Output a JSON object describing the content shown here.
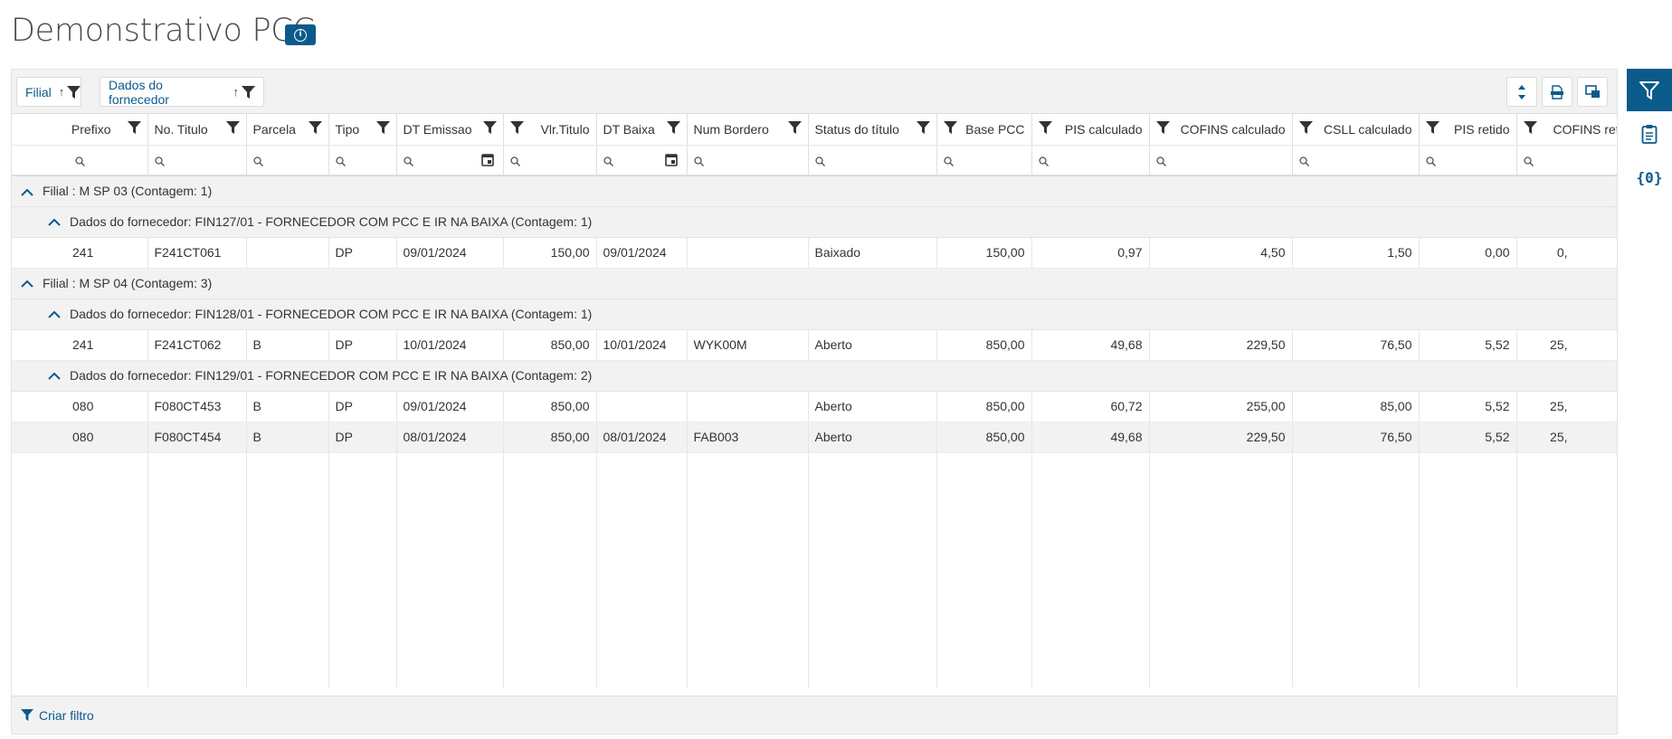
{
  "page": {
    "title": "Demonstrativo PCC"
  },
  "grouping": {
    "chips": [
      {
        "label": "Filial"
      },
      {
        "label": "Dados do fornecedor"
      }
    ]
  },
  "columns": [
    {
      "label": "Prefixo"
    },
    {
      "label": "No. Titulo"
    },
    {
      "label": "Parcela"
    },
    {
      "label": "Tipo"
    },
    {
      "label": "DT Emissao"
    },
    {
      "label": "Vlr.Titulo"
    },
    {
      "label": "DT Baixa"
    },
    {
      "label": "Num Bordero"
    },
    {
      "label": "Status do título"
    },
    {
      "label": "Base PCC"
    },
    {
      "label": "PIS calculado"
    },
    {
      "label": "COFINS calculado"
    },
    {
      "label": "CSLL calculado"
    },
    {
      "label": "PIS retido"
    },
    {
      "label": "COFINS reti"
    }
  ],
  "groups": {
    "g1": "Filial : M SP 03 (Contagem: 1)",
    "g1a": "Dados do fornecedor: FIN127/01 - FORNECEDOR COM PCC E IR NA BAIXA (Contagem: 1)",
    "g2": "Filial : M SP 04 (Contagem: 3)",
    "g2a": "Dados do fornecedor: FIN128/01 - FORNECEDOR COM PCC E IR NA BAIXA (Contagem: 1)",
    "g2b": "Dados do fornecedor: FIN129/01 - FORNECEDOR COM PCC E IR NA BAIXA (Contagem: 2)"
  },
  "rows": [
    [
      "241",
      "F241CT061",
      "",
      "DP",
      "09/01/2024",
      "150,00",
      "09/01/2024",
      "",
      "Baixado",
      "150,00",
      "0,97",
      "4,50",
      "1,50",
      "0,00",
      "0,"
    ],
    [
      "241",
      "F241CT062",
      "B",
      "DP",
      "10/01/2024",
      "850,00",
      "10/01/2024",
      "WYK00M",
      "Aberto",
      "850,00",
      "49,68",
      "229,50",
      "76,50",
      "5,52",
      "25,"
    ],
    [
      "080",
      "F080CT453",
      "B",
      "DP",
      "09/01/2024",
      "850,00",
      "",
      "",
      "Aberto",
      "850,00",
      "60,72",
      "255,00",
      "85,00",
      "5,52",
      "25,"
    ],
    [
      "080",
      "F080CT454",
      "B",
      "DP",
      "08/01/2024",
      "850,00",
      "08/01/2024",
      "FAB003",
      "Aberto",
      "850,00",
      "49,68",
      "229,50",
      "76,50",
      "5,52",
      "25,"
    ]
  ],
  "footer": {
    "create_filter": "Criar filtro"
  },
  "icons": {
    "info": "info-icon",
    "filter": "filter-icon",
    "sort": "sort-asc-icon",
    "search": "search-icon",
    "calendar": "calendar-icon",
    "collapse": "chevron-up-icon",
    "clipboard": "clipboard-icon",
    "braces": "braces-icon"
  },
  "colors": {
    "accent": "#0b5a8c"
  }
}
